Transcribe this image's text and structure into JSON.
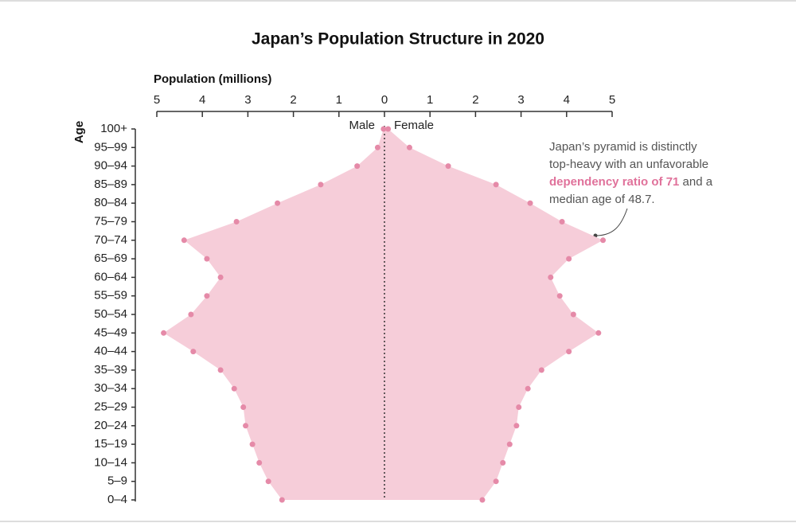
{
  "chart_data": {
    "type": "pyramid",
    "title": "Japan’s Population Structure in 2020",
    "x_label": "Population (millions)",
    "y_label": "Age",
    "categories": [
      "0–4",
      "5–9",
      "10–14",
      "15–19",
      "20–24",
      "25–29",
      "30–34",
      "35–39",
      "40–44",
      "45–49",
      "50–54",
      "55–59",
      "60–64",
      "65–69",
      "70–74",
      "75–79",
      "80–84",
      "85–89",
      "90–94",
      "95–99",
      "100+"
    ],
    "series": [
      {
        "name": "Male",
        "color": "#e58aa8",
        "values": [
          2.25,
          2.55,
          2.75,
          2.9,
          3.05,
          3.1,
          3.3,
          3.6,
          4.2,
          4.85,
          4.25,
          3.9,
          3.6,
          3.9,
          4.4,
          3.25,
          2.35,
          1.4,
          0.6,
          0.15,
          0.02
        ]
      },
      {
        "name": "Female",
        "color": "#e58aa8",
        "values": [
          2.15,
          2.45,
          2.6,
          2.75,
          2.9,
          2.95,
          3.15,
          3.45,
          4.05,
          4.7,
          4.15,
          3.85,
          3.65,
          4.05,
          4.8,
          3.9,
          3.2,
          2.45,
          1.4,
          0.55,
          0.08
        ]
      }
    ],
    "area_color": "#f6cdd9",
    "xlim": [
      -5,
      5
    ],
    "xticks": [
      {
        "value": -5,
        "label": "5"
      },
      {
        "value": -4,
        "label": "4"
      },
      {
        "value": -3,
        "label": "3"
      },
      {
        "value": -2,
        "label": "2"
      },
      {
        "value": -1,
        "label": "1"
      },
      0,
      1,
      2,
      3,
      4,
      5
    ],
    "annotation": {
      "before": "Japan’s pyramid is distinctly top-heavy with an unfavorable",
      "highlight": "dependency ratio of 71",
      "after": "and a median age of 48.7."
    }
  }
}
